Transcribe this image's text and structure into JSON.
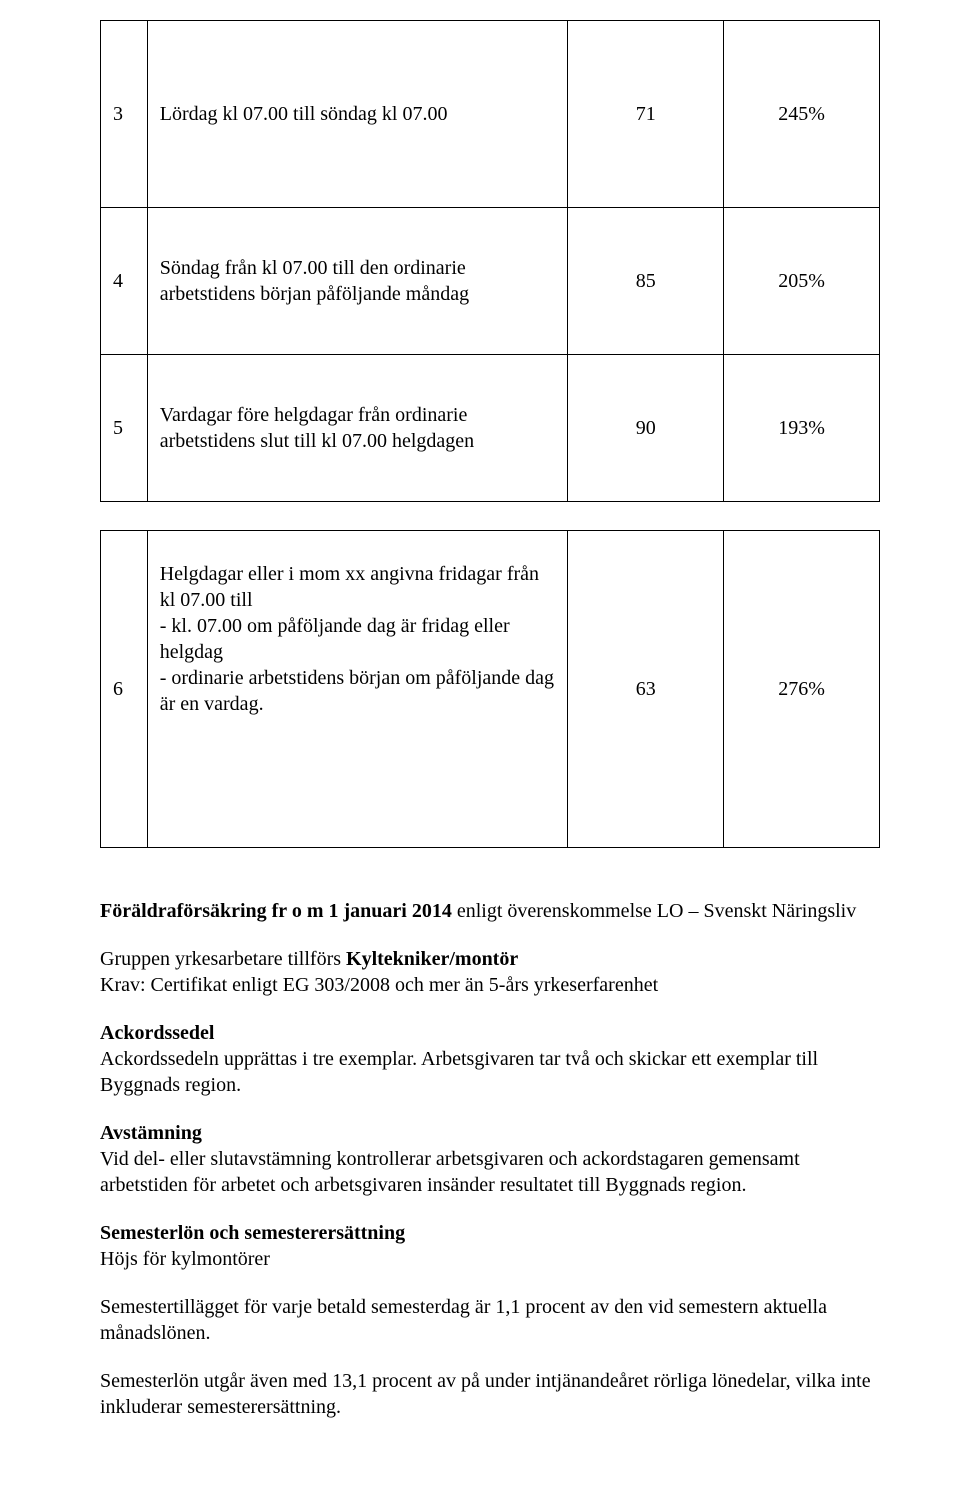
{
  "table1": {
    "r1": {
      "n": "3",
      "text": "Lördag kl 07.00 till söndag kl 07.00",
      "c": "71",
      "d": "245%"
    },
    "r2": {
      "n": "4",
      "text": "Söndag från kl 07.00 till den ordinarie arbetstidens början påföljande måndag",
      "c": "85",
      "d": "205%"
    },
    "r3": {
      "n": "5",
      "text": "Vardagar före helgdagar från ordinarie arbetstidens slut till kl 07.00 helgdagen",
      "c": "90",
      "d": "193%"
    }
  },
  "table2": {
    "r1": {
      "n": "6",
      "l1": "Helgdagar eller i mom xx angivna fridagar från kl 07.00 till",
      "l2": "- kl. 07.00 om påföljande dag är fridag eller helgdag",
      "l3": "- ordinarie arbetstidens början om påföljande dag är en vardag.",
      "c": "63",
      "d": "276%"
    }
  },
  "body": {
    "p1a": "Föräldraförsäkring fr o m 1 januari 2014",
    "p1b": " enligt överenskommelse LO – Svenskt Näringsliv",
    "p2a": "Gruppen yrkesarbetare tillförs ",
    "p2b": "Kyltekniker/montör",
    "p3": "Krav: Certifikat enligt EG 303/2008 och mer än 5-års yrkeserfarenhet",
    "h_ack": "Ackordssedel",
    "p4": "Ackordssedeln upprättas i tre exemplar. Arbetsgivaren tar två och skickar ett exemplar till Byggnads region.",
    "h_avs": "Avstämning",
    "p5": "Vid del- eller slutavstämning kontrollerar arbetsgivaren och ackordstagaren gemensamt arbetstiden för arbetet och arbetsgivaren insänder resultatet till Byggnads region.",
    "h_sem": "Semesterlön och semesterersättning",
    "p6": "Höjs för kylmontörer",
    "p7": "Semestertillägget för varje betald semesterdag är 1,1 procent av den vid semestern aktuella månadslönen.",
    "p8": "Semesterlön utgår även med 13,1 procent av på under intjänandeåret rörliga lönedelar, vilka inte inkluderar semesterersättning."
  }
}
